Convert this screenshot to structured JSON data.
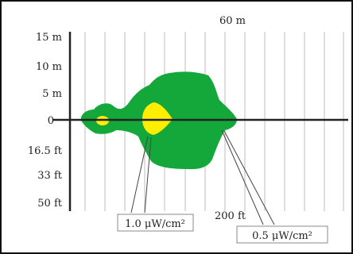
{
  "colors": {
    "contour_outer": "#14a83a",
    "contour_inner": "#ffee00",
    "grid": "#c8c8c8",
    "axis": "#222222",
    "frame": "#111111"
  },
  "labels": {
    "top_distance": "60 m",
    "bottom_distance": "200 ft"
  },
  "vertical_scale": [
    {
      "label": "15 m"
    },
    {
      "label": "10 m"
    },
    {
      "label": "5 m"
    },
    {
      "label": "0"
    },
    {
      "label": "16.5 ft"
    },
    {
      "label": "33 ft"
    },
    {
      "label": "50 ft"
    }
  ],
  "callouts": {
    "inner": "1.0 μW/cm²",
    "outer": "0.5 μW/cm²"
  }
}
